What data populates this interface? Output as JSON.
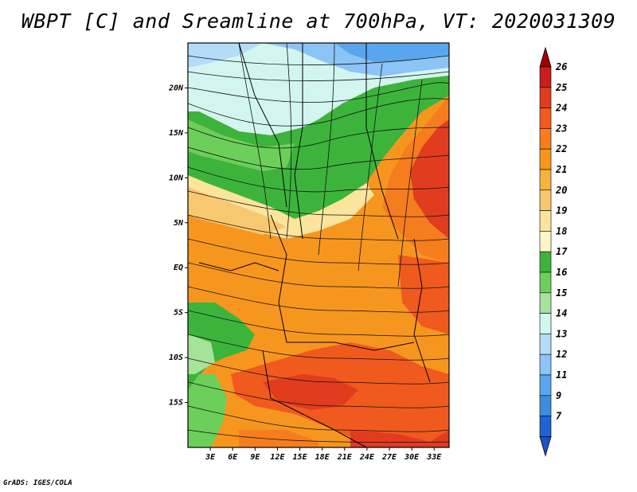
{
  "figure": {
    "title": "WBPT [C] and Sreamline at 700hPa, VT: 2020031309",
    "credit": "GrADS: IGES/COLA"
  },
  "map": {
    "lat_ticks": [
      "20N",
      "15N",
      "10N",
      "5N",
      "EQ",
      "5S",
      "10S",
      "15S"
    ],
    "lat_values": [
      20,
      15,
      10,
      5,
      0,
      -5,
      -10,
      -15
    ],
    "lon_ticks": [
      "3E",
      "6E",
      "9E",
      "12E",
      "15E",
      "18E",
      "21E",
      "24E",
      "27E",
      "30E",
      "33E"
    ],
    "lon_values": [
      3,
      6,
      9,
      12,
      15,
      18,
      21,
      24,
      27,
      30,
      33
    ],
    "lat_range": [
      -20,
      25
    ],
    "lon_range": [
      0,
      35
    ],
    "field": "Wet-bulb potential temperature (shaded) with streamlines"
  },
  "colorbar": {
    "labels": [
      "26",
      "25",
      "24",
      "23",
      "22",
      "21",
      "20",
      "19",
      "18",
      "17",
      "16",
      "15",
      "14",
      "13",
      "12",
      "11",
      "9",
      "7"
    ],
    "colors": [
      "#c81e1e",
      "#e13c1e",
      "#f05a1e",
      "#f57d1e",
      "#f7961e",
      "#f5b23c",
      "#f7c870",
      "#fbe49c",
      "#fdf6c8",
      "#3cb43c",
      "#6ccf5a",
      "#a6e39a",
      "#d2f5f0",
      "#b4dcf8",
      "#8cc4f5",
      "#5aa6ee",
      "#3c8ce1",
      "#2064d2"
    ],
    "arrow_top_color": "#a00000",
    "arrow_bottom_color": "#1e50c8"
  }
}
